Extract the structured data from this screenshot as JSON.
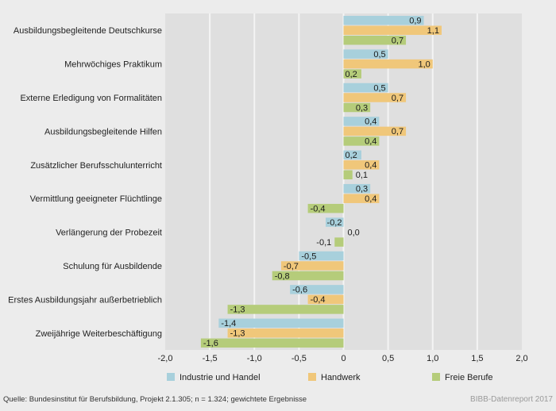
{
  "chart_data": {
    "type": "bar",
    "orientation": "horizontal",
    "categories": [
      "Ausbildungsbegleitende Deutschkurse",
      "Mehrwöchiges Praktikum",
      "Externe Erledigung von Formalitäten",
      "Ausbildungsbegleitende Hilfen",
      "Zusätzlicher Berufsschulunterricht",
      "Vermittlung geeigneter Flüchtlinge",
      "Verlängerung der Probezeit",
      "Schulung für Ausbildende",
      "Erstes Ausbildungsjahr außerbetrieblich",
      "Zweijährige Weiterbeschäftigung"
    ],
    "series": [
      {
        "name": "Industrie und Handel",
        "color": "#a8d0dc",
        "values": [
          0.9,
          0.5,
          0.5,
          0.4,
          0.2,
          0.3,
          -0.2,
          -0.5,
          -0.6,
          -1.4
        ],
        "labels": [
          "0,9",
          "0,5",
          "0,5",
          "0,4",
          "0,2",
          "0,3",
          "-0,2",
          "-0,5",
          "-0,6",
          "-1,4"
        ]
      },
      {
        "name": "Handwerk",
        "color": "#f0c77a",
        "values": [
          1.1,
          1.0,
          0.7,
          0.7,
          0.4,
          0.4,
          0.0,
          -0.7,
          -0.4,
          -1.3
        ],
        "labels": [
          "1,1",
          "1,0",
          "0,7",
          "0,7",
          "0,4",
          "0,4",
          "0,0",
          "-0,7",
          "-0,4",
          "-1,3"
        ]
      },
      {
        "name": "Freie Berufe",
        "color": "#b5cc7a",
        "values": [
          0.7,
          0.2,
          0.3,
          0.4,
          0.1,
          -0.4,
          -0.1,
          -0.8,
          -1.3,
          -1.6
        ],
        "labels": [
          "0,7",
          "0,2",
          "0,3",
          "0,4",
          "0,1",
          "-0,4",
          "-0,1",
          "-0,8",
          "-1,3",
          "-1,6"
        ]
      }
    ],
    "xlim": [
      -2.0,
      2.0
    ],
    "xticks": [
      -2.0,
      -1.5,
      -1.0,
      -0.5,
      0,
      0.5,
      1.0,
      1.5,
      2.0
    ],
    "xtick_labels": [
      "-2,0",
      "-1,5",
      "-1,0",
      "-0,5",
      "0",
      "0,5",
      "1,0",
      "1,5",
      "2,0"
    ],
    "grid": true,
    "legend_position": "bottom",
    "title": "",
    "xlabel": "",
    "ylabel": ""
  },
  "footer": {
    "source": "Quelle: Bundesinstitut für Berufsbildung, Projekt 2.1.305; n = 1.324; gewichtete Ergebnisse",
    "credit": "BIBB-Datenreport 2017"
  }
}
